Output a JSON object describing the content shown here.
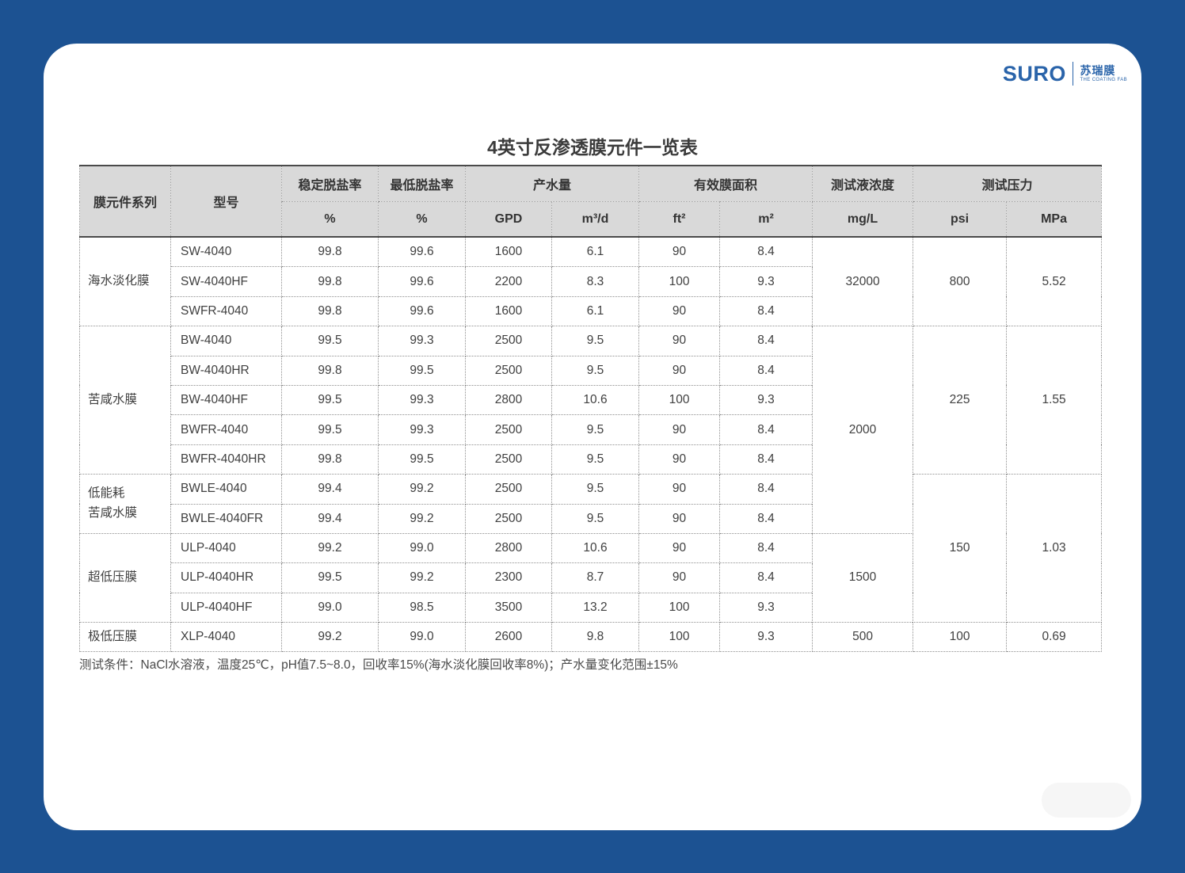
{
  "page": {
    "background_color": "#1c5292",
    "card_color": "#ffffff"
  },
  "logo": {
    "brand": "SURO",
    "cn_name": "苏瑞膜",
    "tagline": "THE COATING FAB",
    "brand_color": "#2a64aa"
  },
  "title": "4英寸反渗透膜元件一览表",
  "footnote": "测试条件：NaCl水溶液，温度25℃，pH值7.5~8.0，回收率15%(海水淡化膜回收率8%)；产水量变化范围±15%",
  "table": {
    "header_row1": [
      {
        "label": "膜元件系列",
        "rowspan": 2,
        "colspan": 1
      },
      {
        "label": "型号",
        "rowspan": 2,
        "colspan": 1
      },
      {
        "label": "稳定脱盐率",
        "rowspan": 1,
        "colspan": 1
      },
      {
        "label": "最低脱盐率",
        "rowspan": 1,
        "colspan": 1
      },
      {
        "label": "产水量",
        "rowspan": 1,
        "colspan": 2
      },
      {
        "label": "有效膜面积",
        "rowspan": 1,
        "colspan": 2
      },
      {
        "label": "测试液浓度",
        "rowspan": 1,
        "colspan": 1
      },
      {
        "label": "测试压力",
        "rowspan": 1,
        "colspan": 2
      }
    ],
    "header_row2": [
      "%",
      "%",
      "GPD",
      "m³/d",
      "ft²",
      "m²",
      "mg/L",
      "psi",
      "MPa"
    ],
    "series_groups": [
      {
        "label": "海水淡化膜",
        "rows": 3
      },
      {
        "label": "苦咸水膜",
        "rows": 5
      },
      {
        "label": "低能耗\n苦咸水膜",
        "rows": 2
      },
      {
        "label": "超低压膜",
        "rows": 3
      },
      {
        "label": "极低压膜",
        "rows": 1
      }
    ],
    "concentration_groups": [
      {
        "value": "32000",
        "rows": 3
      },
      {
        "value": "2000",
        "rows": 7
      },
      {
        "value": "1500",
        "rows": 3
      },
      {
        "value": "500",
        "rows": 1
      }
    ],
    "psi_groups": [
      {
        "value": "800",
        "rows": 3
      },
      {
        "value": "225",
        "rows": 5
      },
      {
        "value": "150",
        "rows": 5
      },
      {
        "value": "100",
        "rows": 1
      }
    ],
    "mpa_groups": [
      {
        "value": "5.52",
        "rows": 3
      },
      {
        "value": "1.55",
        "rows": 5
      },
      {
        "value": "1.03",
        "rows": 5
      },
      {
        "value": "0.69",
        "rows": 1
      }
    ],
    "rows": [
      [
        "SW-4040",
        "99.8",
        "99.6",
        "1600",
        "6.1",
        "90",
        "8.4"
      ],
      [
        "SW-4040HF",
        "99.8",
        "99.6",
        "2200",
        "8.3",
        "100",
        "9.3"
      ],
      [
        "SWFR-4040",
        "99.8",
        "99.6",
        "1600",
        "6.1",
        "90",
        "8.4"
      ],
      [
        "BW-4040",
        "99.5",
        "99.3",
        "2500",
        "9.5",
        "90",
        "8.4"
      ],
      [
        "BW-4040HR",
        "99.8",
        "99.5",
        "2500",
        "9.5",
        "90",
        "8.4"
      ],
      [
        "BW-4040HF",
        "99.5",
        "99.3",
        "2800",
        "10.6",
        "100",
        "9.3"
      ],
      [
        "BWFR-4040",
        "99.5",
        "99.3",
        "2500",
        "9.5",
        "90",
        "8.4"
      ],
      [
        "BWFR-4040HR",
        "99.8",
        "99.5",
        "2500",
        "9.5",
        "90",
        "8.4"
      ],
      [
        "BWLE-4040",
        "99.4",
        "99.2",
        "2500",
        "9.5",
        "90",
        "8.4"
      ],
      [
        "BWLE-4040FR",
        "99.4",
        "99.2",
        "2500",
        "9.5",
        "90",
        "8.4"
      ],
      [
        "ULP-4040",
        "99.2",
        "99.0",
        "2800",
        "10.6",
        "90",
        "8.4"
      ],
      [
        "ULP-4040HR",
        "99.5",
        "99.2",
        "2300",
        "8.7",
        "90",
        "8.4"
      ],
      [
        "ULP-4040HF",
        "99.0",
        "98.5",
        "3500",
        "13.2",
        "100",
        "9.3"
      ],
      [
        "XLP-4040",
        "99.2",
        "99.0",
        "2600",
        "9.8",
        "100",
        "9.3"
      ]
    ]
  }
}
